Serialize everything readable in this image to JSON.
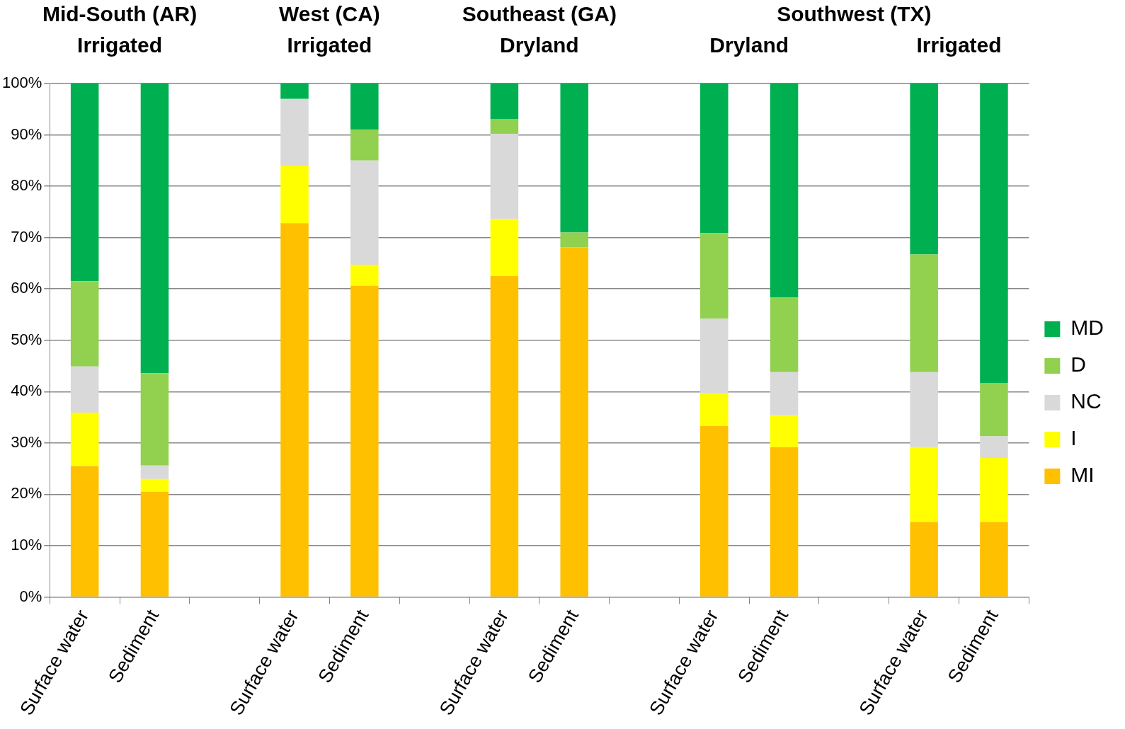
{
  "chart_data": {
    "type": "bar",
    "stacked": true,
    "categories": [
      "Surface water",
      "Sediment",
      null,
      "Surface water",
      "Sediment",
      null,
      "Surface water",
      "Sediment",
      null,
      "Surface water",
      "Sediment",
      null,
      "Surface water",
      "Sediment"
    ],
    "series": [
      {
        "name": "MI",
        "color": "#ffc000",
        "values": [
          25.5,
          20.5,
          null,
          72.8,
          60.6,
          null,
          62.5,
          68.1,
          null,
          33.3,
          29.2,
          null,
          14.6,
          14.6
        ]
      },
      {
        "name": "I",
        "color": "#ffff00",
        "values": [
          10.4,
          2.5,
          null,
          11.2,
          4.1,
          null,
          11.1,
          0,
          null,
          6.3,
          6.2,
          null,
          14.6,
          12.5
        ]
      },
      {
        "name": "NC",
        "color": "#d9d9d9",
        "values": [
          9.0,
          2.6,
          null,
          13,
          20.3,
          null,
          16.6,
          0,
          null,
          14.6,
          8.4,
          null,
          14.6,
          4.2
        ]
      },
      {
        "name": "D",
        "color": "#92d050",
        "values": [
          16.6,
          18,
          null,
          0,
          6,
          null,
          2.9,
          2.9,
          null,
          16.7,
          14.5,
          null,
          22.9,
          10.4
        ]
      },
      {
        "name": "MD",
        "color": "#00b050",
        "values": [
          38.5,
          56.4,
          null,
          3,
          9,
          null,
          6.9,
          29,
          null,
          29.1,
          41.7,
          null,
          33.3,
          58.3
        ]
      }
    ],
    "ylim": [
      0,
      100
    ],
    "yticks": [
      {
        "value": 0,
        "label": "0%"
      },
      {
        "value": 10,
        "label": "10%"
      },
      {
        "value": 20,
        "label": "20%"
      },
      {
        "value": 30,
        "label": "30%"
      },
      {
        "value": 40,
        "label": "40%"
      },
      {
        "value": 50,
        "label": "50%"
      },
      {
        "value": 60,
        "label": "60%"
      },
      {
        "value": 70,
        "label": "70%"
      },
      {
        "value": 80,
        "label": "80%"
      },
      {
        "value": 90,
        "label": "90%"
      },
      {
        "value": 100,
        "label": "100%"
      }
    ],
    "grid": "y",
    "legend": "right",
    "annotations": [
      "Mid-South (AR)",
      "Irrigated",
      "West (CA)",
      "Irrigated",
      "Southeast (GA)",
      "Dryland",
      "Southwest (TX)",
      "Dryland",
      "Irrigated"
    ]
  }
}
